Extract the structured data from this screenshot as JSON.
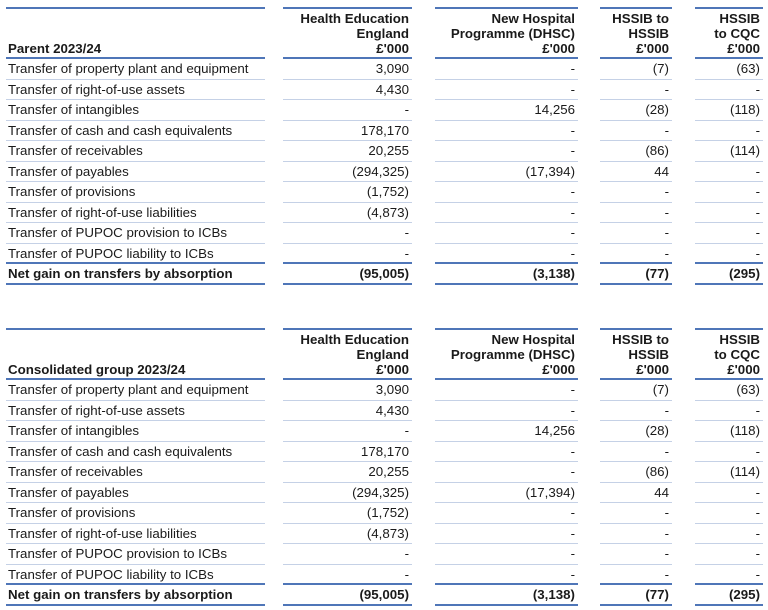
{
  "columns": [
    "Health Education\nEngland\n£'000",
    "New Hospital\nProgramme (DHSC)\n£'000",
    "HSSIB to\nHSSIB\n£'000",
    "HSSIB\nto CQC\n£'000"
  ],
  "row_labels": [
    "Transfer of property plant and equipment",
    "Transfer of right-of-use assets",
    "Transfer of intangibles",
    "Transfer of cash and cash equivalents",
    "Transfer of receivables",
    "Transfer of payables",
    "Transfer of provisions",
    "Transfer of right-of-use liabilities",
    "Transfer of PUPOC provision to ICBs",
    "Transfer of PUPOC liability to ICBs"
  ],
  "tables": [
    {
      "title": "Parent 2023/24",
      "rows": [
        [
          "3,090",
          "-",
          "(7)",
          "(63)"
        ],
        [
          "4,430",
          "-",
          "-",
          "-"
        ],
        [
          "-",
          "14,256",
          "(28)",
          "(118)"
        ],
        [
          "178,170",
          "-",
          "-",
          "-"
        ],
        [
          "20,255",
          "-",
          "(86)",
          "(114)"
        ],
        [
          "(294,325)",
          "(17,394)",
          "44",
          "-"
        ],
        [
          "(1,752)",
          "-",
          "-",
          "-"
        ],
        [
          "(4,873)",
          "-",
          "-",
          "-"
        ],
        [
          "-",
          "-",
          "-",
          "-"
        ],
        [
          "-",
          "-",
          "-",
          "-"
        ]
      ],
      "total_label": "Net gain on transfers by absorption",
      "total": [
        "(95,005)",
        "(3,138)",
        "(77)",
        "(295)"
      ]
    },
    {
      "title": "Consolidated group 2023/24",
      "rows": [
        [
          "3,090",
          "-",
          "(7)",
          "(63)"
        ],
        [
          "4,430",
          "-",
          "-",
          "-"
        ],
        [
          "-",
          "14,256",
          "(28)",
          "(118)"
        ],
        [
          "178,170",
          "-",
          "-",
          "-"
        ],
        [
          "20,255",
          "-",
          "(86)",
          "(114)"
        ],
        [
          "(294,325)",
          "(17,394)",
          "44",
          "-"
        ],
        [
          "(1,752)",
          "-",
          "-",
          "-"
        ],
        [
          "(4,873)",
          "-",
          "-",
          "-"
        ],
        [
          "-",
          "-",
          "-",
          "-"
        ],
        [
          "-",
          "-",
          "-",
          "-"
        ]
      ],
      "total_label": "Net gain on transfers by absorption",
      "total": [
        "(95,005)",
        "(3,138)",
        "(77)",
        "(295)"
      ]
    }
  ]
}
